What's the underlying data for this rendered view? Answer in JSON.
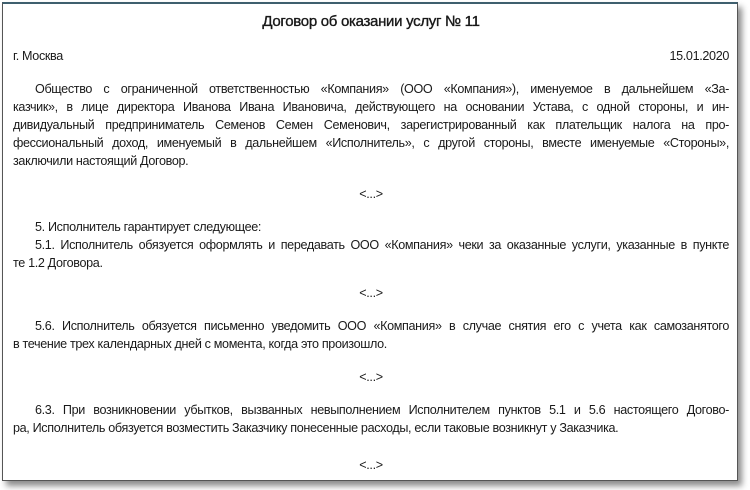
{
  "title": "Договор об оказании услуг № 11",
  "city": "г. Москва",
  "date": "15.01.2020",
  "preamble": [
    "Общество с ограниченной ответственностью «Компания» (ООО «Компания»), именуемое в дальнейшем «За-",
    "казчик», в лице директора Иванова Ивана Ивановича, действующего на основании Устава, с одной стороны, и ин-",
    "дивидуальный предприниматель Семенов Семен Семенович, зарегистрированный как плательщик налога на про-",
    "фессиональный доход, именуемый в дальнейшем «Исполнитель», с другой стороны, вместе именуемые «Стороны»,",
    "заключили настоящий Договор."
  ],
  "ellipsis": "<...>",
  "clause5": "5. Исполнитель гарантирует следующее:",
  "clause5_1": [
    "5.1. Исполнитель обязуется оформлять и передавать ООО «Компания» чеки за оказанные услуги, указанные в пункте",
    "те 1.2 Договора."
  ],
  "clause5_6": [
    "5.6. Исполнитель обязуется письменно уведомить ООО «Компания» в случае снятия его с учета как самозанятого",
    "в течение трех календарных дней с момента, когда это произошло."
  ],
  "clause6_3": [
    "6.3. При возникновении убытков, вызванных невыполнением Исполнителем пунктов 5.1 и 5.6 настоящего Догово-",
    "ра, Исполнитель обязуется возместить Заказчику понесенные расходы, если таковые возникнут у Заказчика."
  ]
}
